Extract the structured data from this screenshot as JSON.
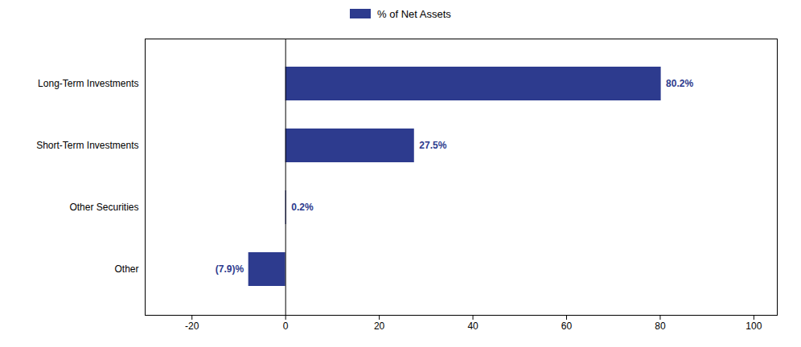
{
  "chart_data": {
    "type": "bar",
    "orientation": "horizontal",
    "categories": [
      "Long-Term Investments",
      "Short-Term Investments",
      "Other Securities",
      "Other"
    ],
    "series": [
      {
        "name": "% of Net Assets",
        "color": "#2d3b8e",
        "values": [
          80.2,
          27.5,
          0.2,
          -7.9
        ],
        "value_labels": [
          "80.2%",
          "27.5%",
          "0.2%",
          "(7.9)%"
        ]
      }
    ],
    "xlim": [
      -30,
      105
    ],
    "xticks": [
      -20,
      0,
      20,
      40,
      60,
      80,
      100
    ],
    "grid": false,
    "legend": "top",
    "data_labels": true
  }
}
